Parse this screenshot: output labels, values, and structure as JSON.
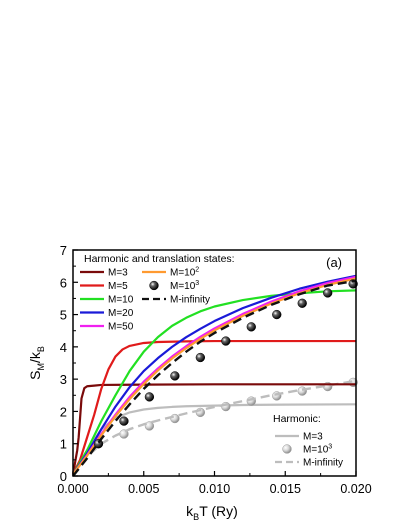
{
  "chart_data": {
    "type": "line",
    "panel_label": "(a)",
    "xlabel": {
      "main": "k",
      "sub": "B",
      "rest": "T (Ry)"
    },
    "ylabel": {
      "s_main": "S",
      "s_sub": "M",
      "slash": "/k",
      "k_sub": "B"
    },
    "xlim": [
      0,
      0.02
    ],
    "ylim": [
      0,
      7
    ],
    "x_ticks": [
      "0.000",
      "0.005",
      "0.010",
      "0.015",
      "0.020"
    ],
    "x_tick_values": [
      0,
      0.005,
      0.01,
      0.015,
      0.02
    ],
    "y_ticks": [
      "0",
      "1",
      "2",
      "3",
      "4",
      "5",
      "6",
      "7"
    ],
    "y_tick_values": [
      0,
      1,
      2,
      3,
      4,
      5,
      6,
      7
    ],
    "legend_top": {
      "title": "Harmonic and translation states:",
      "placement": "top-left",
      "entries": [
        {
          "label": "M=3",
          "color": "#7a0a0a",
          "style": "line"
        },
        {
          "label": "M=5",
          "color": "#e01b1b",
          "style": "line"
        },
        {
          "label": "M=10",
          "color": "#22e022",
          "style": "line"
        },
        {
          "label": "M=20",
          "color": "#1a1ad8",
          "style": "line"
        },
        {
          "label": "M=50",
          "color": "#f020f0",
          "style": "line"
        },
        {
          "label_base": "M=10",
          "label_exp": "2",
          "color": "#ff9a30",
          "style": "line"
        },
        {
          "label_base": "M=10",
          "label_exp": "3",
          "color": "#111111",
          "style": "marker"
        },
        {
          "label": "M-infinity",
          "color": "#111111",
          "style": "dash"
        }
      ]
    },
    "legend_bottom": {
      "title": "Harmonic:",
      "placement": "bottom-right",
      "entries": [
        {
          "label": "M=3",
          "color": "#bdbdbd",
          "style": "line"
        },
        {
          "label_base": "M=10",
          "label_exp": "3",
          "color": "#bdbdbd",
          "style": "marker"
        },
        {
          "label": "M-infinity",
          "color": "#bdbdbd",
          "style": "dash"
        }
      ]
    },
    "series": [
      {
        "name": "M=3",
        "color": "#7a0a0a",
        "style": "line",
        "x": [
          0,
          0.0001,
          0.0002,
          0.0003,
          0.0004,
          0.0005,
          0.0006,
          0.0008,
          0.001,
          0.0015,
          0.002,
          0.005,
          0.01,
          0.015,
          0.02
        ],
        "y": [
          0.05,
          0.3,
          0.55,
          0.8,
          1.2,
          1.8,
          2.4,
          2.72,
          2.78,
          2.8,
          2.82,
          2.83,
          2.84,
          2.84,
          2.84
        ]
      },
      {
        "name": "M=5",
        "color": "#e01b1b",
        "style": "line",
        "x": [
          0,
          0.0005,
          0.001,
          0.0015,
          0.002,
          0.0025,
          0.003,
          0.0035,
          0.004,
          0.005,
          0.006,
          0.008,
          0.01,
          0.015,
          0.02
        ],
        "y": [
          0.05,
          0.5,
          1.2,
          1.9,
          2.7,
          3.3,
          3.7,
          3.92,
          4.03,
          4.12,
          4.15,
          4.17,
          4.18,
          4.18,
          4.18
        ]
      },
      {
        "name": "M=10",
        "color": "#22e022",
        "style": "line",
        "x": [
          0,
          0.001,
          0.002,
          0.003,
          0.004,
          0.005,
          0.006,
          0.007,
          0.008,
          0.009,
          0.01,
          0.012,
          0.014,
          0.016,
          0.018,
          0.02
        ],
        "y": [
          0.05,
          0.8,
          1.7,
          2.5,
          3.25,
          3.85,
          4.3,
          4.65,
          4.9,
          5.1,
          5.25,
          5.45,
          5.58,
          5.66,
          5.72,
          5.75
        ]
      },
      {
        "name": "M=20",
        "color": "#1a1ad8",
        "style": "line",
        "x": [
          0,
          0.001,
          0.002,
          0.003,
          0.004,
          0.005,
          0.006,
          0.007,
          0.008,
          0.009,
          0.01,
          0.012,
          0.014,
          0.016,
          0.018,
          0.02
        ],
        "y": [
          0.05,
          0.7,
          1.45,
          2.15,
          2.75,
          3.25,
          3.65,
          4.0,
          4.3,
          4.56,
          4.8,
          5.2,
          5.52,
          5.8,
          6.02,
          6.2
        ]
      },
      {
        "name": "M=50",
        "color": "#f020f0",
        "style": "line",
        "x": [
          0,
          0.001,
          0.002,
          0.003,
          0.004,
          0.005,
          0.006,
          0.007,
          0.008,
          0.009,
          0.01,
          0.012,
          0.014,
          0.016,
          0.018,
          0.02
        ],
        "y": [
          0.05,
          0.65,
          1.3,
          1.9,
          2.45,
          2.92,
          3.33,
          3.7,
          4.02,
          4.31,
          4.57,
          5.02,
          5.4,
          5.72,
          5.98,
          6.17
        ]
      },
      {
        "name": "M=10^2",
        "color": "#ff9a30",
        "style": "line",
        "x": [
          0,
          0.001,
          0.002,
          0.003,
          0.004,
          0.005,
          0.006,
          0.007,
          0.008,
          0.009,
          0.01,
          0.012,
          0.014,
          0.016,
          0.018,
          0.02
        ],
        "y": [
          0.05,
          0.63,
          1.26,
          1.85,
          2.38,
          2.85,
          3.27,
          3.64,
          3.96,
          4.25,
          4.51,
          4.96,
          5.34,
          5.66,
          5.92,
          6.12
        ]
      },
      {
        "name": "M=10^3",
        "color": "#111111",
        "style": "marker",
        "x": [
          0.0018,
          0.0036,
          0.0054,
          0.0072,
          0.009,
          0.0108,
          0.0126,
          0.0144,
          0.0162,
          0.018,
          0.0198
        ],
        "y": [
          1.0,
          1.7,
          2.45,
          3.1,
          3.67,
          4.18,
          4.62,
          5.0,
          5.35,
          5.67,
          5.95
        ]
      },
      {
        "name": "M-infinity",
        "color": "#111111",
        "style": "dash",
        "x": [
          0,
          0.001,
          0.002,
          0.003,
          0.004,
          0.005,
          0.006,
          0.007,
          0.008,
          0.009,
          0.01,
          0.012,
          0.014,
          0.016,
          0.018,
          0.02
        ],
        "y": [
          0.0,
          0.55,
          1.15,
          1.7,
          2.22,
          2.7,
          3.12,
          3.5,
          3.85,
          4.16,
          4.43,
          4.9,
          5.3,
          5.63,
          5.9,
          6.05
        ]
      },
      {
        "name": "Harmonic M=3",
        "color": "#bdbdbd",
        "style": "line",
        "x": [
          0,
          0.001,
          0.002,
          0.003,
          0.004,
          0.005,
          0.006,
          0.007,
          0.008,
          0.01,
          0.012,
          0.015,
          0.02
        ],
        "y": [
          0.05,
          0.8,
          1.45,
          1.8,
          1.97,
          2.06,
          2.11,
          2.14,
          2.16,
          2.18,
          2.2,
          2.21,
          2.22
        ]
      },
      {
        "name": "Harmonic M=10^3",
        "color": "#bdbdbd",
        "style": "marker",
        "x": [
          0.0018,
          0.0036,
          0.0054,
          0.0072,
          0.009,
          0.0108,
          0.0126,
          0.0144,
          0.0162,
          0.018,
          0.0198
        ],
        "y": [
          1.0,
          1.3,
          1.55,
          1.78,
          1.97,
          2.15,
          2.32,
          2.48,
          2.63,
          2.77,
          2.9
        ]
      },
      {
        "name": "Harmonic M-infinity",
        "color": "#bdbdbd",
        "style": "dash",
        "x": [
          0,
          0.001,
          0.002,
          0.003,
          0.004,
          0.005,
          0.006,
          0.008,
          0.01,
          0.012,
          0.014,
          0.016,
          0.018,
          0.02
        ],
        "y": [
          0.0,
          0.6,
          1.0,
          1.25,
          1.45,
          1.6,
          1.72,
          1.94,
          2.14,
          2.32,
          2.5,
          2.66,
          2.8,
          2.95
        ]
      }
    ]
  }
}
